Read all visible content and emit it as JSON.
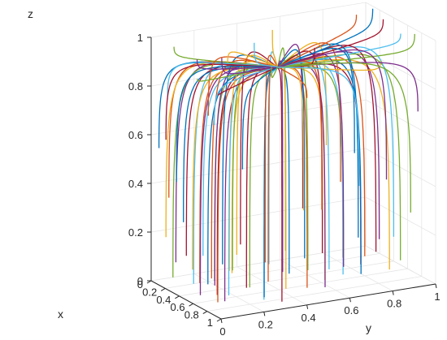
{
  "chart_data": {
    "type": "line",
    "subtype": "3d-trajectories",
    "title": "",
    "xlabel": "x",
    "ylabel": "y",
    "zlabel": "z",
    "xlim": [
      0,
      1
    ],
    "ylim": [
      0,
      1
    ],
    "zlim": [
      0,
      1
    ],
    "x_ticks": [
      "0",
      "0.2",
      "0.4",
      "0.6",
      "0.8",
      "1"
    ],
    "y_ticks": [
      "0",
      "0.2",
      "0.4",
      "0.6",
      "0.8",
      "1"
    ],
    "z_ticks": [
      "0",
      "0.2",
      "0.4",
      "0.6",
      "0.8",
      "1"
    ],
    "grid": true,
    "attractor": [
      0.52,
      0.42,
      0.9
    ],
    "colors": [
      "#0072BD",
      "#D95319",
      "#EDB120",
      "#7E2F8E",
      "#77AC30",
      "#4DBEEE",
      "#A2142F"
    ],
    "trajectory_starts": [
      [
        0.05,
        0.02,
        0.55
      ],
      [
        0.1,
        0.05,
        0.35
      ],
      [
        0.15,
        0.02,
        0.2
      ],
      [
        0.2,
        0.05,
        0.1
      ],
      [
        0.25,
        0.02,
        0.05
      ],
      [
        0.3,
        0.1,
        0.02
      ],
      [
        0.35,
        0.05,
        0.15
      ],
      [
        0.4,
        0.02,
        0.3
      ],
      [
        0.45,
        0.08,
        0.05
      ],
      [
        0.5,
        0.03,
        0.12
      ],
      [
        0.55,
        0.05,
        0.02
      ],
      [
        0.6,
        0.1,
        0.08
      ],
      [
        0.65,
        0.03,
        0.2
      ],
      [
        0.7,
        0.08,
        0.04
      ],
      [
        0.75,
        0.02,
        0.1
      ],
      [
        0.8,
        0.05,
        0.03
      ],
      [
        0.85,
        0.1,
        0.15
      ],
      [
        0.9,
        0.05,
        0.05
      ],
      [
        0.95,
        0.15,
        0.1
      ],
      [
        1.0,
        0.2,
        0.05
      ],
      [
        0.95,
        0.3,
        0.02
      ],
      [
        0.9,
        0.35,
        0.12
      ],
      [
        0.85,
        0.45,
        0.04
      ],
      [
        0.95,
        0.5,
        0.08
      ],
      [
        0.8,
        0.55,
        0.02
      ],
      [
        0.9,
        0.6,
        0.15
      ],
      [
        0.75,
        0.65,
        0.05
      ],
      [
        0.85,
        0.7,
        0.1
      ],
      [
        0.7,
        0.75,
        0.03
      ],
      [
        0.6,
        0.8,
        0.08
      ],
      [
        0.8,
        0.85,
        0.05
      ],
      [
        0.5,
        0.9,
        0.12
      ],
      [
        0.65,
        0.95,
        0.05
      ],
      [
        0.4,
        1.0,
        0.1
      ],
      [
        0.3,
        0.95,
        0.03
      ],
      [
        0.2,
        0.9,
        0.08
      ],
      [
        0.1,
        0.85,
        0.3
      ],
      [
        0.05,
        0.8,
        0.45
      ],
      [
        0.02,
        0.7,
        0.2
      ],
      [
        0.08,
        0.6,
        0.05
      ],
      [
        0.15,
        0.5,
        0.02
      ],
      [
        0.05,
        0.4,
        0.1
      ],
      [
        0.1,
        0.3,
        0.04
      ],
      [
        0.25,
        0.2,
        0.02
      ],
      [
        0.35,
        0.25,
        0.06
      ],
      [
        0.45,
        0.15,
        0.03
      ],
      [
        0.55,
        0.2,
        0.1
      ],
      [
        0.65,
        0.15,
        0.02
      ],
      [
        0.75,
        0.2,
        0.06
      ],
      [
        0.85,
        0.25,
        0.03
      ],
      [
        0.6,
        0.35,
        0.04
      ],
      [
        0.7,
        0.4,
        0.02
      ],
      [
        0.5,
        0.45,
        0.05
      ],
      [
        0.4,
        0.6,
        0.02
      ],
      [
        0.55,
        0.65,
        0.04
      ],
      [
        0.3,
        0.7,
        0.06
      ],
      [
        0.2,
        0.65,
        0.03
      ],
      [
        0.25,
        0.45,
        0.05
      ],
      [
        0.15,
        0.35,
        0.08
      ],
      [
        0.45,
        0.75,
        0.02
      ],
      [
        0.02,
        0.1,
        0.95
      ],
      [
        0.08,
        0.05,
        0.75
      ],
      [
        0.15,
        0.02,
        0.6
      ],
      [
        0.3,
        0.02,
        0.45
      ],
      [
        0.05,
        0.25,
        0.65
      ],
      [
        0.02,
        0.35,
        0.85
      ],
      [
        0.35,
        0.1,
        0.95
      ],
      [
        0.6,
        0.02,
        0.92
      ],
      [
        0.75,
        0.05,
        0.75
      ],
      [
        0.9,
        0.02,
        0.9
      ],
      [
        1.0,
        0.1,
        0.6
      ],
      [
        1.0,
        0.4,
        0.85
      ],
      [
        0.98,
        0.75,
        0.95
      ],
      [
        0.9,
        0.95,
        0.7
      ],
      [
        0.7,
        1.0,
        0.98
      ],
      [
        0.5,
        1.0,
        0.95
      ],
      [
        0.25,
        1.0,
        0.97
      ],
      [
        0.1,
        1.0,
        0.99
      ],
      [
        0.02,
        0.95,
        0.96
      ],
      [
        0.2,
        0.5,
        0.99
      ],
      [
        0.55,
        0.15,
        0.98
      ],
      [
        0.8,
        0.3,
        0.97
      ],
      [
        0.4,
        0.35,
        0.99
      ],
      [
        0.65,
        0.55,
        0.98
      ],
      [
        0.3,
        0.85,
        0.45
      ],
      [
        0.6,
        0.6,
        0.3
      ],
      [
        0.8,
        0.45,
        0.35
      ],
      [
        0.45,
        0.95,
        0.35
      ],
      [
        0.95,
        0.9,
        0.3
      ],
      [
        0.98,
        0.65,
        0.45
      ]
    ]
  }
}
